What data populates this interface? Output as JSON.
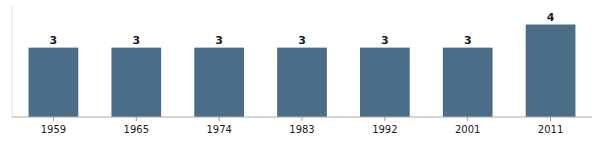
{
  "chart_data": {
    "type": "bar",
    "categories": [
      "1959",
      "1965",
      "1974",
      "1983",
      "1992",
      "2001",
      "2011"
    ],
    "values": [
      3,
      3,
      3,
      3,
      3,
      3,
      4
    ],
    "color": "#4a6e87",
    "ylim": [
      0,
      4.8
    ],
    "grid": false,
    "data_labels": true,
    "tick_labels": "x"
  }
}
